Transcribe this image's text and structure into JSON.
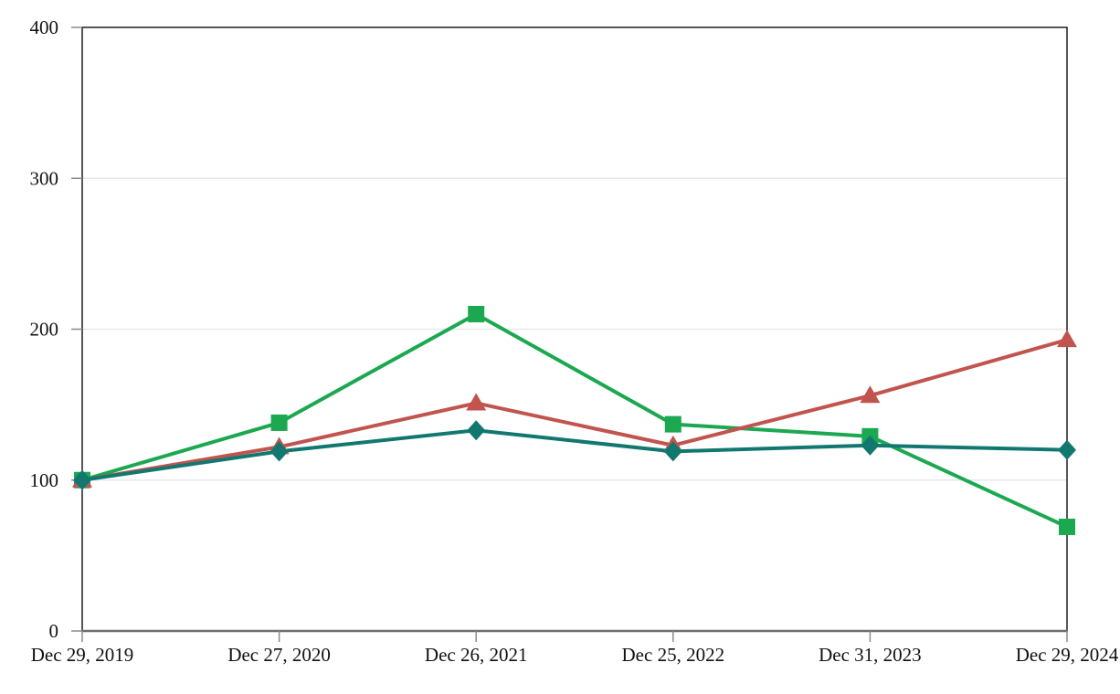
{
  "figure": {
    "background": "#ffffff",
    "text_color": "#111111",
    "grid_color": "#e8e8e8",
    "border_color": "#1f1f1f",
    "bottom_axis_color": "#6e6e6e",
    "tick_color": "#8c8c8c"
  },
  "chart_data": {
    "type": "line",
    "title": "",
    "xlabel": "",
    "ylabel": "",
    "x_labels": [
      "Dec 29, 2019",
      "Dec 27, 2020",
      "Dec 26, 2021",
      "Dec 25, 2022",
      "Dec 31, 2023",
      "Dec 29, 2024"
    ],
    "ylim": [
      0,
      400
    ],
    "yticks": [
      0,
      100,
      200,
      300,
      400
    ],
    "grid": "horizontal",
    "legend": "none",
    "series": [
      {
        "name": "green-square",
        "marker": "square",
        "color": "#1ca851",
        "values": [
          100,
          138,
          210,
          137,
          129,
          69
        ]
      },
      {
        "name": "red-triangle",
        "marker": "triangle",
        "color": "#c1544e",
        "values": [
          100,
          122,
          151,
          123,
          156,
          193
        ]
      },
      {
        "name": "teal-diamond",
        "marker": "diamond",
        "color": "#12786f",
        "values": [
          100,
          119,
          133,
          119,
          123,
          120
        ]
      }
    ]
  }
}
